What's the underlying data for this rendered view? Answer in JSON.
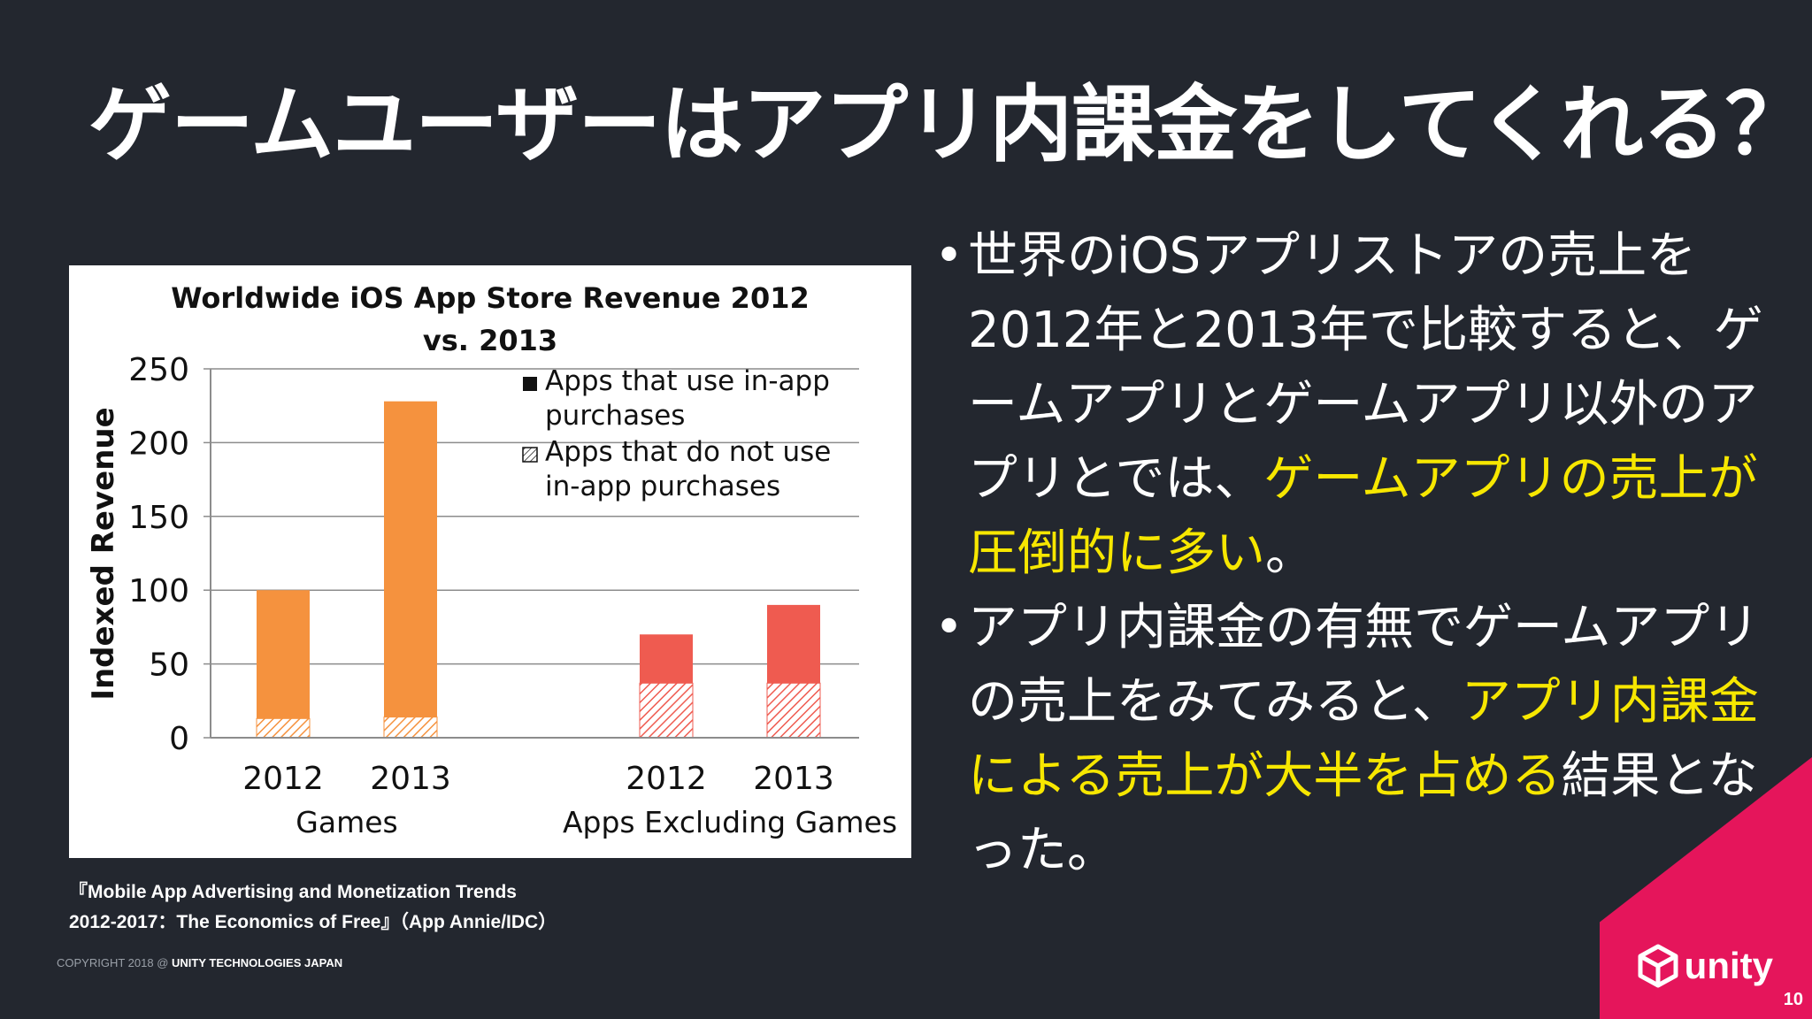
{
  "slide": {
    "title": "ゲームユーザーはアプリ内課金をしてくれる？",
    "page_number": "10"
  },
  "bullets": [
    {
      "segments": [
        {
          "text": "世界のiOSアプリストアの売上を2012年と2013年で比較すると、ゲームアプリとゲームアプリ以外のアプリとでは、",
          "highlight": false
        },
        {
          "text": "ゲームアプリの売上が圧倒的に多い",
          "highlight": true
        },
        {
          "text": "。",
          "highlight": false
        }
      ]
    },
    {
      "segments": [
        {
          "text": "アプリ内課金の有無でゲームアプリの売上をみてみると、",
          "highlight": false
        },
        {
          "text": "アプリ内課金による売上が大半を占める",
          "highlight": true
        },
        {
          "text": "結果となった。",
          "highlight": false
        }
      ]
    }
  ],
  "source": {
    "line1": "『Mobile App Advertising and Monetization Trends",
    "line2": "2012-2017：The Economics of Free』（App Annie/IDC）"
  },
  "copyright": {
    "prefix": "COPYRIGHT 2018 @ ",
    "company": "UNITY TECHNOLOGIES JAPAN"
  },
  "logo": {
    "wordmark": "unity",
    "icon": "unity-cube-icon"
  },
  "colors": {
    "background": "#23272f",
    "highlight": "#f7e700",
    "accent": "#e5155b",
    "games_bar": "#f5923e",
    "non_games_bar": "#ef5b50"
  },
  "chart_data": {
    "type": "bar",
    "stacked": true,
    "title": "Worldwide iOS App Store Revenue 2012 vs. 2013",
    "ylabel": "Indexed Revenue",
    "ylim": [
      0,
      250
    ],
    "yticks": [
      0,
      50,
      100,
      150,
      200,
      250
    ],
    "grid": true,
    "legend_position": "top-right",
    "groups": [
      {
        "name": "Games",
        "categories": [
          "2012",
          "2013"
        ],
        "color": "#f5923e"
      },
      {
        "name": "Apps Excluding Games",
        "categories": [
          "2012",
          "2013"
        ],
        "color": "#ef5b50"
      }
    ],
    "series": [
      {
        "name": "Apps that use in-app purchases",
        "fill": "solid",
        "values": [
          87,
          214,
          33,
          53
        ]
      },
      {
        "name": "Apps that do not use in-app purchases",
        "fill": "hatched",
        "values": [
          13,
          14,
          37,
          37
        ]
      }
    ],
    "totals": [
      100,
      228,
      70,
      90
    ]
  }
}
